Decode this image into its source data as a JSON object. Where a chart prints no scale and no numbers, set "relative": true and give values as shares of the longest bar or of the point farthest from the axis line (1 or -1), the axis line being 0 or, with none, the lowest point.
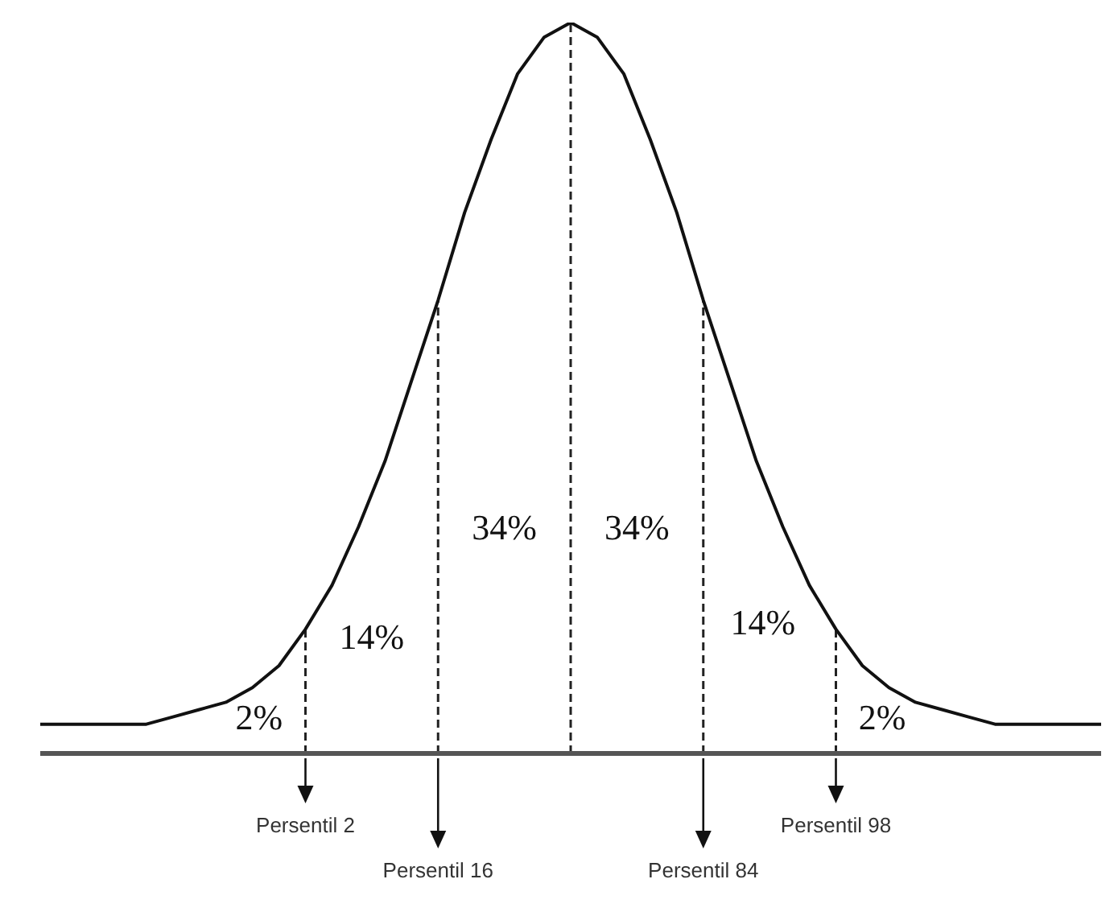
{
  "chart_data": {
    "type": "line",
    "relative": true,
    "color": "#111111",
    "marker": "none",
    "line_style": "solid",
    "categories": [
      null,
      null,
      null,
      null,
      null,
      null,
      null,
      null,
      null,
      null,
      null,
      null,
      null,
      null,
      null,
      null,
      null,
      null,
      null,
      null,
      null,
      null,
      null,
      null,
      null,
      null,
      null,
      null,
      null,
      null,
      null,
      null,
      null,
      null,
      null,
      null,
      null,
      null,
      null,
      null,
      null
    ],
    "values": [
      0.04,
      0.04,
      0.04,
      0.04,
      0.04,
      0.05,
      0.06,
      0.07,
      0.09,
      0.12,
      0.17,
      0.23,
      0.31,
      0.4,
      0.51,
      0.62,
      0.74,
      0.84,
      0.93,
      0.98,
      1,
      0.98,
      0.93,
      0.84,
      0.74,
      0.62,
      0.51,
      0.4,
      0.31,
      0.23,
      0.17,
      0.12,
      0.09,
      0.07,
      0.06,
      0.05,
      0.04,
      0.04,
      0.04,
      0.04,
      0.04
    ],
    "annotations": [
      "2%",
      "14%",
      "34%",
      "34%",
      "14%",
      "2%",
      "Persentil 2",
      "Persentil 16",
      "Persentil 84",
      "Persentil 98"
    ]
  }
}
